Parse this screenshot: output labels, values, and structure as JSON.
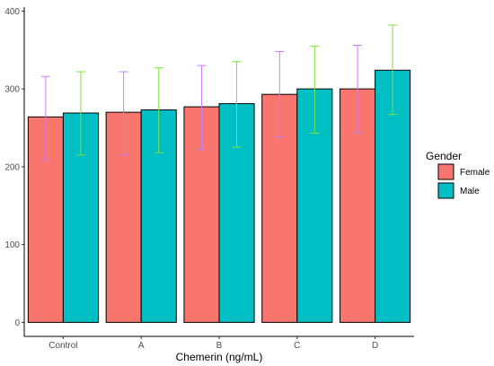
{
  "chart_data": {
    "type": "bar",
    "categories": [
      "Control",
      "A",
      "B",
      "C",
      "D"
    ],
    "series": [
      {
        "name": "Female",
        "color": "#F8766D",
        "values": [
          264,
          270,
          277,
          293,
          300
        ],
        "error_low": [
          209,
          215,
          222,
          238,
          244
        ],
        "error_high": [
          316,
          322,
          330,
          348,
          356
        ],
        "error_bar_color": "#C77CFF"
      },
      {
        "name": "Male",
        "color": "#00BFC4",
        "values": [
          269,
          273,
          281,
          300,
          324
        ],
        "error_low": [
          215,
          218,
          225,
          243,
          267
        ],
        "error_high": [
          322,
          327,
          335,
          355,
          382
        ],
        "error_bar_color": "#7CE33D"
      }
    ],
    "title": "",
    "xlabel": "Chemerin (ng/mL)",
    "ylabel": "",
    "ylim": [
      -18,
      405
    ],
    "yticks": [
      0,
      100,
      200,
      300,
      400
    ],
    "grid": false,
    "legend": {
      "title": "Gender",
      "position": "right"
    }
  }
}
